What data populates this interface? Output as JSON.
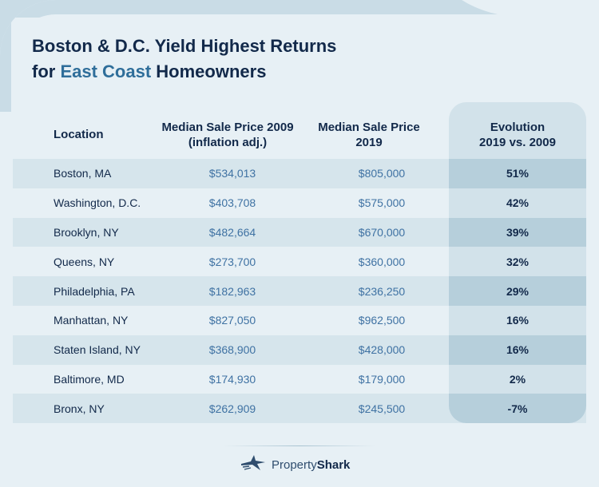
{
  "title": {
    "line1": "Boston & D.C. Yield Highest Returns",
    "line2_prefix": "for ",
    "line2_accent": "East Coast",
    "line2_suffix": " Homeowners"
  },
  "colors": {
    "title": "#12294a",
    "accent": "#2f6e9a",
    "price_text": "#3f72a3",
    "background": "#e7f0f5",
    "row_shade": "#d6e5ec",
    "evolution_column": "#d2e2ea"
  },
  "chart_data": {
    "type": "table",
    "columns": [
      {
        "line1": "Location",
        "line2": ""
      },
      {
        "line1": "Median Sale Price 2009",
        "line2": "(inflation adj.)"
      },
      {
        "line1": "Median Sale Price",
        "line2": "2019"
      },
      {
        "line1": "Evolution",
        "line2": "2019 vs. 2009"
      }
    ],
    "rows": [
      {
        "location": "Boston, MA",
        "price_2009": "$534,013",
        "price_2019": "$805,000",
        "evolution": "51%"
      },
      {
        "location": "Washington, D.C.",
        "price_2009": "$403,708",
        "price_2019": "$575,000",
        "evolution": "42%"
      },
      {
        "location": "Brooklyn, NY",
        "price_2009": "$482,664",
        "price_2019": "$670,000",
        "evolution": "39%"
      },
      {
        "location": "Queens, NY",
        "price_2009": "$273,700",
        "price_2019": "$360,000",
        "evolution": "32%"
      },
      {
        "location": "Philadelphia, PA",
        "price_2009": "$182,963",
        "price_2019": "$236,250",
        "evolution": "29%"
      },
      {
        "location": "Manhattan, NY",
        "price_2009": "$827,050",
        "price_2019": "$962,500",
        "evolution": "16%"
      },
      {
        "location": "Staten Island, NY",
        "price_2009": "$368,900",
        "price_2019": "$428,000",
        "evolution": "16%"
      },
      {
        "location": "Baltimore, MD",
        "price_2009": "$174,930",
        "price_2019": "$179,000",
        "evolution": "2%"
      },
      {
        "location": "Bronx, NY",
        "price_2009": "$262,909",
        "price_2019": "$245,500",
        "evolution": "-7%"
      }
    ]
  },
  "footer": {
    "logo_icon": "shark-icon",
    "logo_text_regular": "Property",
    "logo_text_bold": "Shark"
  }
}
